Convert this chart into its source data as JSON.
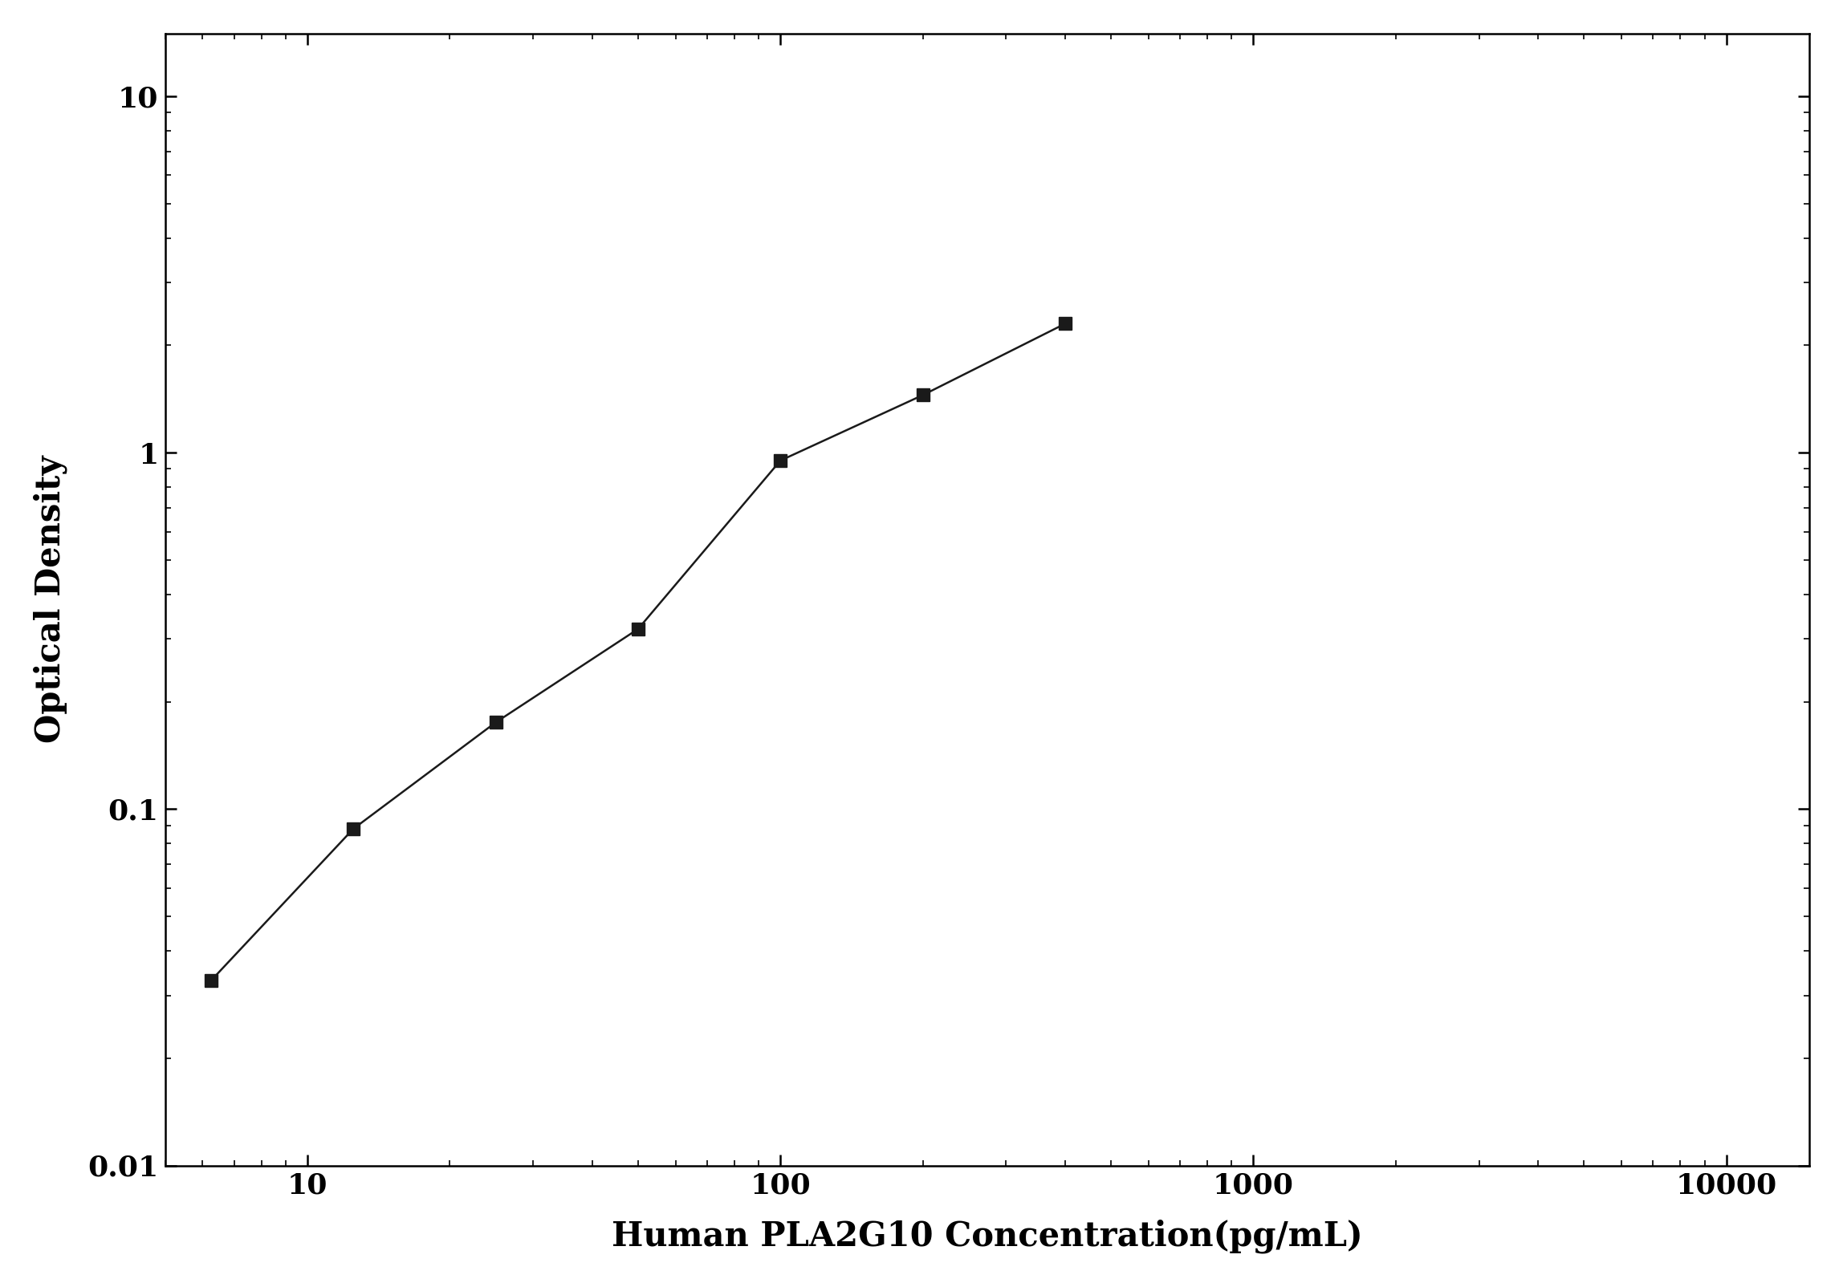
{
  "x": [
    6.25,
    12.5,
    25,
    50,
    100,
    200,
    400
  ],
  "y": [
    0.033,
    0.088,
    0.175,
    0.32,
    0.95,
    1.45,
    2.3
  ],
  "xlabel": "Human PLA2G10 Concentration(pg/mL)",
  "ylabel": "Optical Density",
  "xlim": [
    5,
    15000
  ],
  "ylim": [
    0.01,
    15
  ],
  "xticks": [
    10,
    100,
    1000,
    10000
  ],
  "xtick_labels": [
    "10",
    "100",
    "1000",
    "10000"
  ],
  "yticks": [
    0.01,
    0.1,
    1,
    10
  ],
  "ytick_labels": [
    "0.01",
    "0.1",
    "1",
    "10"
  ],
  "marker": "s",
  "marker_size": 11,
  "line_color": "#1a1a1a",
  "marker_color": "#1a1a1a",
  "line_width": 1.8,
  "xlabel_fontsize": 30,
  "ylabel_fontsize": 30,
  "tick_fontsize": 26,
  "background_color": "#ffffff",
  "font_weight": "bold"
}
